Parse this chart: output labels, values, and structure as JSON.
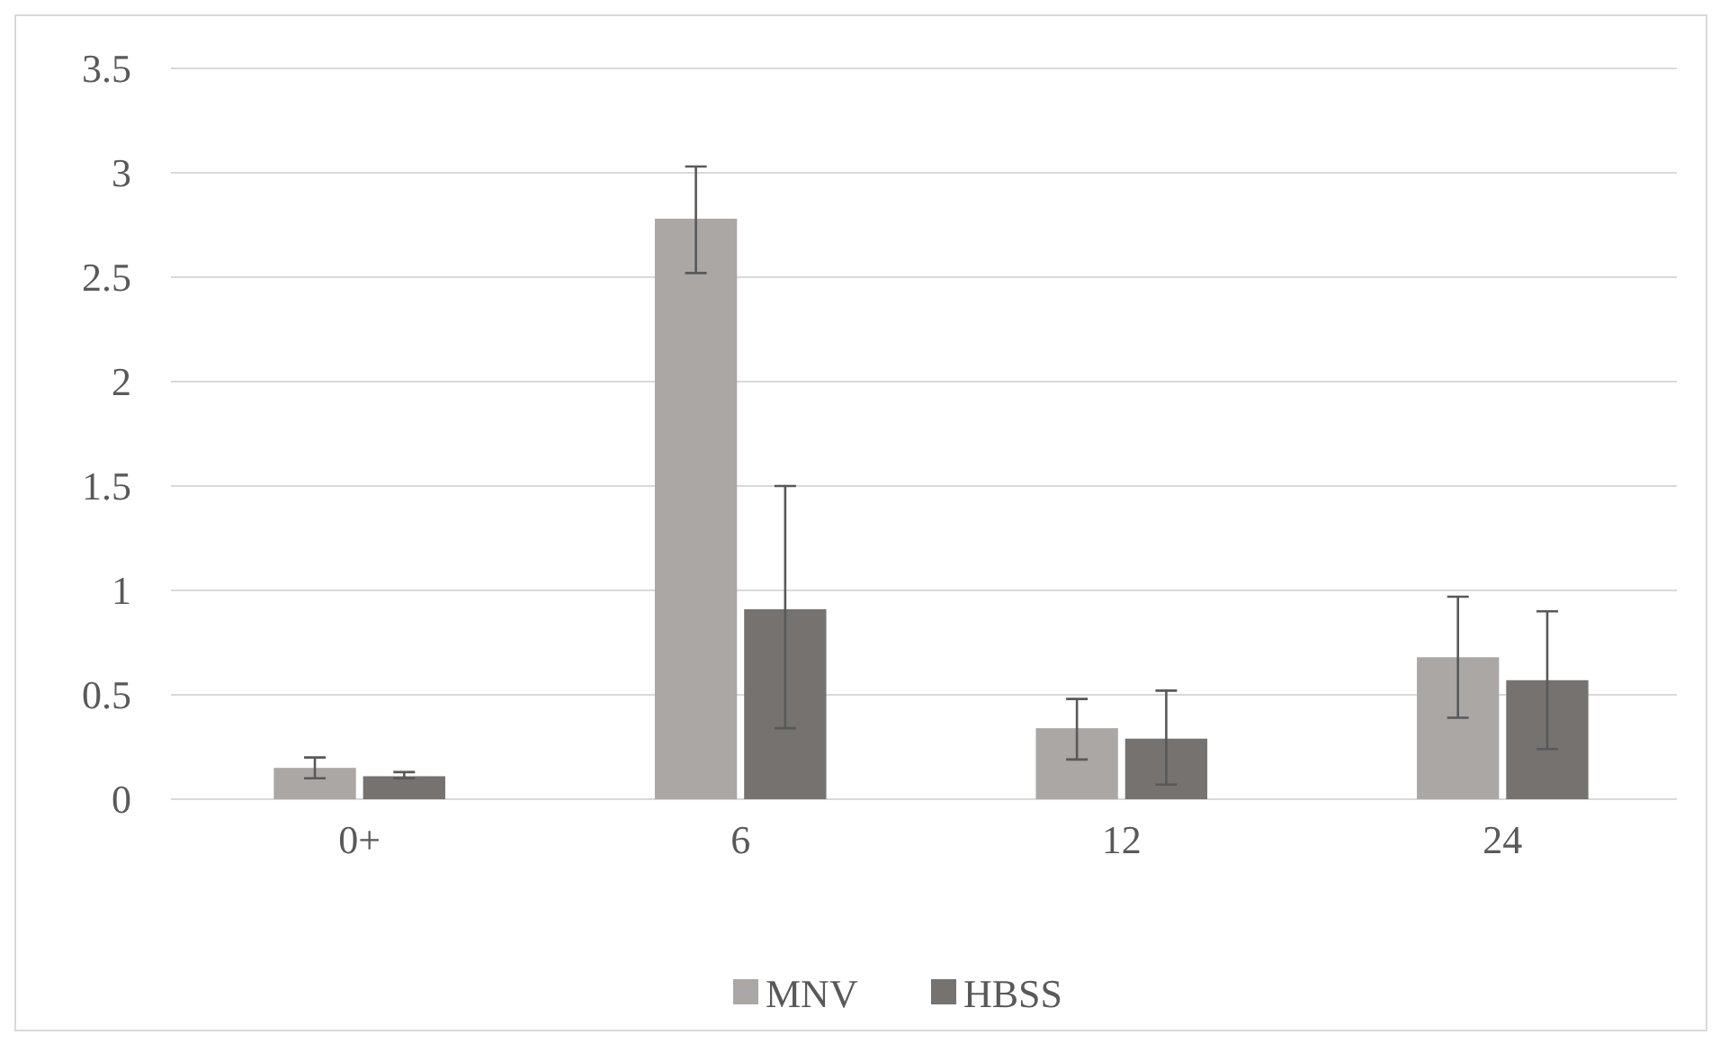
{
  "chart_data": {
    "type": "bar",
    "categories": [
      "0+",
      "6",
      "12",
      "24"
    ],
    "series": [
      {
        "name": "MNV",
        "color": "#aaa7a5",
        "values": [
          0.15,
          2.78,
          0.34,
          0.68
        ],
        "errors": [
          [
            0.1,
            0.2
          ],
          [
            2.52,
            3.03
          ],
          [
            0.19,
            0.48
          ],
          [
            0.39,
            0.97
          ]
        ]
      },
      {
        "name": "HBSS",
        "color": "#757270",
        "values": [
          0.11,
          0.91,
          0.29,
          0.57
        ],
        "errors": [
          [
            0.1,
            0.13
          ],
          [
            0.34,
            1.5
          ],
          [
            0.07,
            0.52
          ],
          [
            0.24,
            0.9
          ]
        ]
      }
    ],
    "ylim": [
      0,
      3.5
    ],
    "yticks": [
      0,
      0.5,
      1,
      1.5,
      2,
      2.5,
      3,
      3.5
    ],
    "grid": "y",
    "legend": "bottom"
  }
}
